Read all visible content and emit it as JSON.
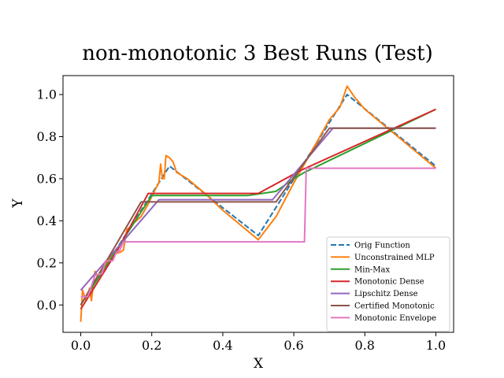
{
  "chart_data": {
    "type": "line",
    "title": "non-monotonic 3 Best Runs (Test)",
    "xlabel": "X",
    "ylabel": "Y",
    "xlim": [
      -0.05,
      1.05
    ],
    "ylim": [
      -0.13,
      1.09
    ],
    "xticks": [
      0.0,
      0.2,
      0.4,
      0.6,
      0.8,
      1.0
    ],
    "xtick_labels": [
      "0.0",
      "0.2",
      "0.4",
      "0.6",
      "0.8",
      "1.0"
    ],
    "yticks": [
      0.0,
      0.2,
      0.4,
      0.6,
      0.8,
      1.0
    ],
    "ytick_labels": [
      "0.0",
      "0.2",
      "0.4",
      "0.6",
      "0.8",
      "1.0"
    ],
    "grid": false,
    "legend_position": "lower-right",
    "series": [
      {
        "name": "Orig Function",
        "color": "#1f77b4",
        "style": "dashed",
        "points": [
          [
            0.0,
            0.0
          ],
          [
            0.25,
            0.66
          ],
          [
            0.5,
            0.33
          ],
          [
            0.75,
            1.0
          ],
          [
            1.0,
            0.66
          ]
        ]
      },
      {
        "name": "Unconstrained MLP",
        "color": "#ff7f0e",
        "style": "solid",
        "points": [
          [
            0.0,
            -0.08
          ],
          [
            0.005,
            0.07
          ],
          [
            0.015,
            0.02
          ],
          [
            0.025,
            0.08
          ],
          [
            0.03,
            0.02
          ],
          [
            0.04,
            0.16
          ],
          [
            0.05,
            0.13
          ],
          [
            0.07,
            0.19
          ],
          [
            0.09,
            0.24
          ],
          [
            0.11,
            0.25
          ],
          [
            0.12,
            0.26
          ],
          [
            0.13,
            0.36
          ],
          [
            0.14,
            0.37
          ],
          [
            0.15,
            0.39
          ],
          [
            0.17,
            0.42
          ],
          [
            0.19,
            0.48
          ],
          [
            0.21,
            0.55
          ],
          [
            0.22,
            0.58
          ],
          [
            0.225,
            0.67
          ],
          [
            0.23,
            0.6
          ],
          [
            0.235,
            0.6
          ],
          [
            0.24,
            0.71
          ],
          [
            0.25,
            0.7
          ],
          [
            0.26,
            0.68
          ],
          [
            0.27,
            0.63
          ],
          [
            0.3,
            0.6
          ],
          [
            0.35,
            0.53
          ],
          [
            0.4,
            0.45
          ],
          [
            0.45,
            0.38
          ],
          [
            0.5,
            0.31
          ],
          [
            0.55,
            0.42
          ],
          [
            0.6,
            0.58
          ],
          [
            0.65,
            0.73
          ],
          [
            0.7,
            0.88
          ],
          [
            0.73,
            0.94
          ],
          [
            0.75,
            1.04
          ],
          [
            0.77,
            0.99
          ],
          [
            0.8,
            0.93
          ],
          [
            0.85,
            0.86
          ],
          [
            0.9,
            0.79
          ],
          [
            0.95,
            0.72
          ],
          [
            1.0,
            0.65
          ]
        ]
      },
      {
        "name": "Min-Max",
        "color": "#2ca02c",
        "style": "solid",
        "points": [
          [
            0.0,
            0.0
          ],
          [
            0.2,
            0.52
          ],
          [
            0.47,
            0.52
          ],
          [
            0.55,
            0.54
          ],
          [
            0.6,
            0.6
          ],
          [
            0.63,
            0.63
          ],
          [
            1.0,
            0.93
          ]
        ]
      },
      {
        "name": "Monotonic Dense",
        "color": "#d62728",
        "style": "solid",
        "points": [
          [
            0.0,
            -0.02
          ],
          [
            0.1,
            0.25
          ],
          [
            0.19,
            0.53
          ],
          [
            0.5,
            0.53
          ],
          [
            0.62,
            0.64
          ],
          [
            1.0,
            0.93
          ]
        ]
      },
      {
        "name": "Lipschitz Dense",
        "color": "#9467bd",
        "style": "solid",
        "points": [
          [
            0.0,
            0.07
          ],
          [
            0.22,
            0.5
          ],
          [
            0.54,
            0.5
          ],
          [
            0.71,
            0.84
          ],
          [
            1.0,
            0.84
          ]
        ]
      },
      {
        "name": "Certified Monotonic",
        "color": "#8c564b",
        "style": "solid",
        "points": [
          [
            0.0,
            0.0
          ],
          [
            0.17,
            0.49
          ],
          [
            0.55,
            0.49
          ],
          [
            0.7,
            0.84
          ],
          [
            1.0,
            0.84
          ]
        ]
      },
      {
        "name": "Monotonic Envelope",
        "color": "#e377c2",
        "style": "solid",
        "points": [
          [
            0.0,
            0.04
          ],
          [
            0.02,
            0.04
          ],
          [
            0.04,
            0.14
          ],
          [
            0.06,
            0.15
          ],
          [
            0.07,
            0.21
          ],
          [
            0.09,
            0.21
          ],
          [
            0.1,
            0.25
          ],
          [
            0.11,
            0.26
          ],
          [
            0.12,
            0.3
          ],
          [
            0.63,
            0.3
          ],
          [
            0.635,
            0.65
          ],
          [
            1.0,
            0.65
          ]
        ]
      }
    ]
  }
}
